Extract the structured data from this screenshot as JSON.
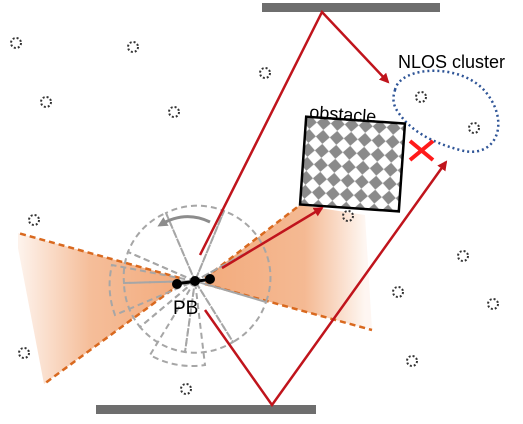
{
  "labels": {
    "nlos_cluster": "NLOS cluster",
    "obstacle": "obstacle",
    "pb": "PB"
  },
  "colors": {
    "beam": "#f2a878",
    "beam_edge": "#d9691f",
    "ray": "#c0141c",
    "wall": "#6e6e6e",
    "cluster_outline": "#2f5597",
    "block_cross": "#ff1a1a",
    "dashed_sector": "#a6a6a6",
    "dot": "#333333"
  },
  "icons": {
    "block": "red-x-icon",
    "rotation": "curved-arrow-icon",
    "scatterer": "dotted-circle-icon"
  }
}
